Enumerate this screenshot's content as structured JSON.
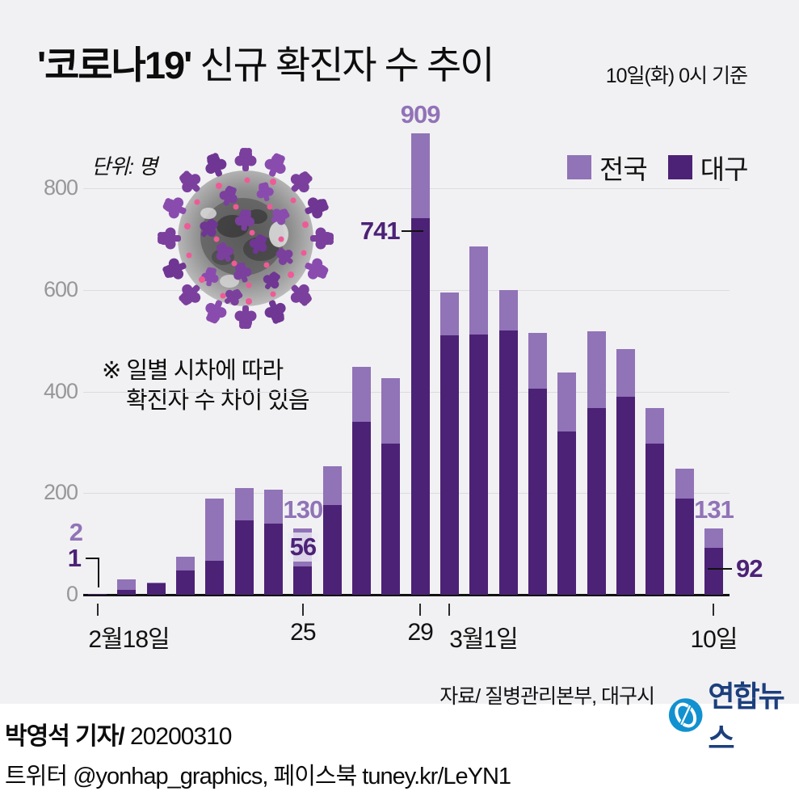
{
  "header": {
    "title_strong": "'코로나19'",
    "title_rest": " 신규 확진자 수 추이",
    "asof": "10일(화) 0시 기준"
  },
  "legend": {
    "items": [
      {
        "label": "전국",
        "color": "#9173b7"
      },
      {
        "label": "대구",
        "color": "#4c2276"
      }
    ]
  },
  "chart_data": {
    "type": "bar",
    "variant": "overlay-stacked",
    "title": "'코로나19' 신규 확진자 수 추이",
    "unit_label": "단위: 명",
    "note": [
      "※ 일별 시차에 따라",
      "확진자 수 차이 있음"
    ],
    "categories": [
      "2월18일",
      "2월19일",
      "2월20일",
      "2월21일",
      "2월22일",
      "2월23일",
      "2월24일",
      "2월25일",
      "2월26일",
      "2월27일",
      "2월28일",
      "2월29일",
      "3월1일",
      "3월2일",
      "3월3일",
      "3월4일",
      "3월5일",
      "3월6일",
      "3월7일",
      "3월8일",
      "3월9일",
      "3월10일"
    ],
    "series": [
      {
        "name": "전국",
        "color": "#9173b7",
        "values": [
          2,
          31,
          24,
          74,
          190,
          210,
          207,
          130,
          253,
          449,
          427,
          909,
          595,
          686,
          600,
          516,
          438,
          518,
          483,
          367,
          248,
          131
        ]
      },
      {
        "name": "대구",
        "color": "#4c2276",
        "values": [
          1,
          10,
          23,
          47,
          67,
          147,
          140,
          56,
          177,
          340,
          297,
          741,
          511,
          513,
          520,
          405,
          321,
          367,
          390,
          297,
          190,
          92
        ]
      }
    ],
    "ylim": [
      0,
      940
    ],
    "yticks": [
      0,
      200,
      400,
      600,
      800
    ],
    "grid": true,
    "legend_position": "top-right",
    "x_axis_ticks": [
      {
        "index": 0,
        "label": "2월18일",
        "dx": 39
      },
      {
        "index": 7,
        "label": "25",
        "dx": 0
      },
      {
        "index": 11,
        "label": "29",
        "dx": 0
      },
      {
        "index": 12,
        "label": "3월1일",
        "dx": 42
      },
      {
        "index": 21,
        "label": "10일",
        "dx": 0
      }
    ],
    "annotations": [
      {
        "text": "909",
        "series": 0,
        "index": 11,
        "placement": "above"
      },
      {
        "text": "741",
        "series": 1,
        "index": 11,
        "placement": "left-dash"
      },
      {
        "text": "130",
        "series": 0,
        "index": 7,
        "placement": "above"
      },
      {
        "text": "56",
        "series": 1,
        "index": 7,
        "placement": "on-bar"
      },
      {
        "text": "2",
        "series": 0,
        "index": 0,
        "placement": "left-stack-top"
      },
      {
        "text": "1",
        "series": 1,
        "index": 0,
        "placement": "left-stack-bottom"
      },
      {
        "text": "131",
        "series": 0,
        "index": 21,
        "placement": "above"
      },
      {
        "text": "92",
        "series": 1,
        "index": 21,
        "placement": "right-dash"
      }
    ]
  },
  "source": "자료/ 질병관리본부, 대구시",
  "logo": {
    "text": "연합뉴스"
  },
  "credits": {
    "byline_bold": "박영석 기자/",
    "byline_date": "20200310",
    "contact": "트위터 @yonhap_graphics, 페이스북 tuney.kr/LeYN1"
  }
}
